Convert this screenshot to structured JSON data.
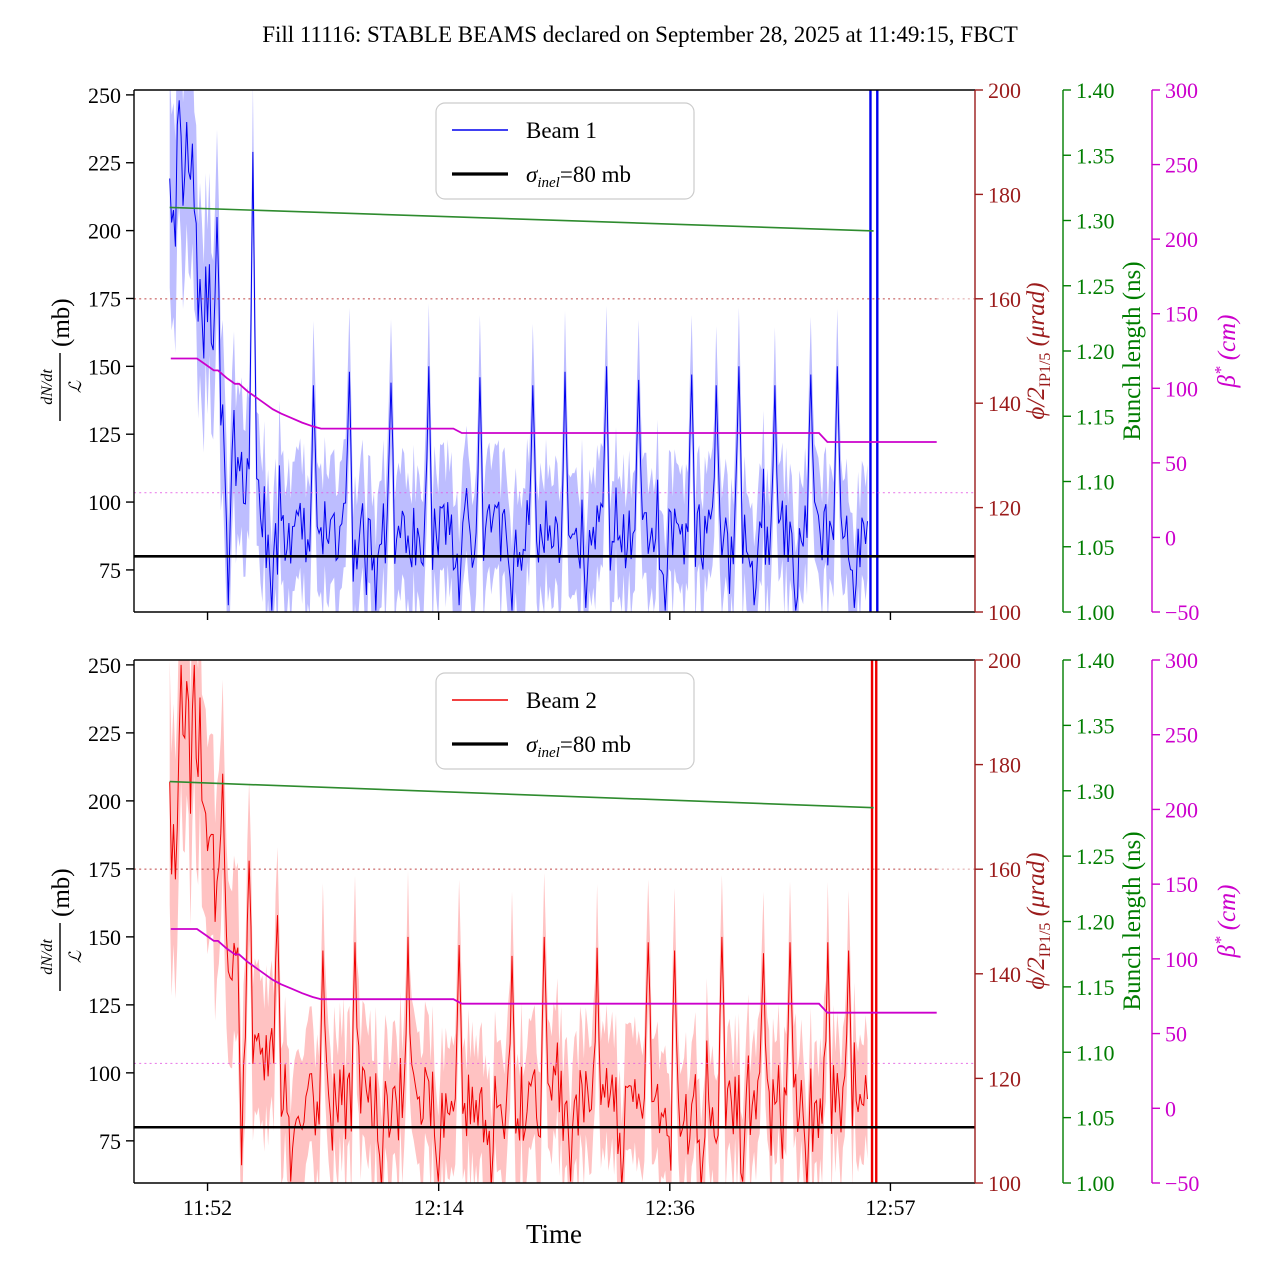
{
  "title": "Fill 11116: STABLE BEAMS declared on September 28, 2025 at 11:49:15, FBCT",
  "colors": {
    "beam1": "#0000ee",
    "beam1_band": "rgba(0,0,255,0.26)",
    "beam2": "#ee0000",
    "beam2_band": "rgba(255,0,0,0.24)",
    "sigma_line": "#000000",
    "bunch_line": "#2e8b2e",
    "phi_axis": "#9b1b1b",
    "phi_dotted": "rgba(178,34,34,0.6)",
    "phi_dotted_faint": "rgba(178,34,34,0.3)",
    "bunch_axis": "#007d00",
    "beta_axis": "#cc00cc",
    "beta_line": "#cc00cc",
    "beta_dotted": "rgba(227,88,227,0.75)",
    "frame": "#000000",
    "legend_border": "#cccccc"
  },
  "x_axis": {
    "label": "Time",
    "t0_clock": "11:45",
    "range_min": [
      0,
      80.05
    ],
    "ticks": [
      {
        "t": 7,
        "label": "11:52"
      },
      {
        "t": 29,
        "label": "12:14"
      },
      {
        "t": 51,
        "label": "12:36"
      },
      {
        "t": 72,
        "label": "12:57"
      }
    ]
  },
  "left_axis": {
    "label_num": "dN/dt",
    "label_den": "ℒ",
    "label_unit": "(mb)",
    "range": [
      59.5,
      251.8
    ],
    "ticks": [
      {
        "v": 250,
        "label": "250"
      },
      {
        "v": 225,
        "label": "225"
      },
      {
        "v": 200,
        "label": "200"
      },
      {
        "v": 175,
        "label": "175"
      },
      {
        "v": 150,
        "label": "150"
      },
      {
        "v": 125,
        "label": "125"
      },
      {
        "v": 100,
        "label": "100"
      },
      {
        "v": 75,
        "label": "75"
      }
    ]
  },
  "phi_axis": {
    "label_main": "ϕ/2",
    "label_sub": "IP1/5",
    "label_unit": " (μrad)",
    "range": [
      100,
      200
    ],
    "ticks": [
      {
        "v": 200,
        "label": "200"
      },
      {
        "v": 180,
        "label": "180"
      },
      {
        "v": 160,
        "label": "160"
      },
      {
        "v": 140,
        "label": "140"
      },
      {
        "v": 120,
        "label": "120"
      },
      {
        "v": 100,
        "label": "100"
      }
    ]
  },
  "bunch_axis": {
    "label": "Bunch length (ns)",
    "range": [
      1.0,
      1.4
    ],
    "ticks": [
      {
        "v": 1.4,
        "label": "1.40"
      },
      {
        "v": 1.35,
        "label": "1.35"
      },
      {
        "v": 1.3,
        "label": "1.30"
      },
      {
        "v": 1.25,
        "label": "1.25"
      },
      {
        "v": 1.2,
        "label": "1.20"
      },
      {
        "v": 1.15,
        "label": "1.15"
      },
      {
        "v": 1.1,
        "label": "1.10"
      },
      {
        "v": 1.05,
        "label": "1.05"
      },
      {
        "v": 1.0,
        "label": "1.00"
      }
    ]
  },
  "beta_axis": {
    "label_main": "β",
    "label_sup": "*",
    "label_unit": " (cm)",
    "range": [
      -50,
      300
    ],
    "ticks": [
      {
        "v": 300,
        "label": "300"
      },
      {
        "v": 250,
        "label": "250"
      },
      {
        "v": 200,
        "label": "200"
      },
      {
        "v": 150,
        "label": "150"
      },
      {
        "v": 100,
        "label": "100"
      },
      {
        "v": 50,
        "label": "50"
      },
      {
        "v": 0,
        "label": "0"
      },
      {
        "v": -50,
        "label": "−50"
      }
    ]
  },
  "chart_data": {
    "type": "line",
    "note": "LHC luminosity-normalized rate dN/dt/L vs time for both beams; noisy measured series described by baseline/noise/band envelopes; overlays: inelastic cross-section reference, half crossing-angle, bunch length, beta-star levelling steps.",
    "shared_series": {
      "sigma_inel_mb": {
        "value": 80,
        "t_start": 0,
        "t_end": 80.05
      },
      "crossing_half_angle_urad": {
        "value": 160,
        "style": "dotted",
        "t_start": 0,
        "t_end_strong": 76.4,
        "t_end_faint": 80.05
      },
      "beta_star_target_cm": {
        "value": 30,
        "style": "dotted",
        "t_start": 0,
        "t_end": 80.05
      },
      "beta_star_cm": {
        "points": [
          [
            3.5,
            120
          ],
          [
            6,
            120
          ],
          [
            6.8,
            116
          ],
          [
            7.6,
            112
          ],
          [
            8,
            112
          ],
          [
            8.8,
            107
          ],
          [
            9.6,
            103
          ],
          [
            10,
            103
          ],
          [
            10.8,
            98
          ],
          [
            11.6,
            94
          ],
          [
            12.4,
            90
          ],
          [
            13.2,
            86
          ],
          [
            14,
            83
          ],
          [
            15,
            80
          ],
          [
            16,
            77
          ],
          [
            17,
            74.5
          ],
          [
            17.8,
            73
          ],
          [
            30.4,
            73
          ],
          [
            31.2,
            70
          ],
          [
            65.2,
            70
          ],
          [
            66,
            64
          ],
          [
            76.4,
            64
          ]
        ]
      }
    },
    "subplots": [
      {
        "id": "beam1",
        "legend": {
          "beam_label": "Beam 1",
          "sigma_prefix": "σ",
          "sigma_sub": "inel",
          "sigma_suffix": "=80 mb"
        },
        "beam": {
          "t_range": [
            3.4,
            69.9
          ],
          "baseline": [
            [
              3.4,
              200
            ],
            [
              4,
              212
            ],
            [
              4.6,
              205
            ],
            [
              5.2,
              198
            ],
            [
              5.8,
              188
            ],
            [
              6.4,
              175
            ],
            [
              7,
              163
            ],
            [
              7.6,
              152
            ],
            [
              8.2,
              142
            ],
            [
              8.8,
              132
            ],
            [
              9.4,
              122
            ],
            [
              10,
              112
            ],
            [
              10.6,
              105
            ],
            [
              11.2,
              100
            ],
            [
              11.8,
              96
            ],
            [
              12.4,
              93
            ],
            [
              13,
              91
            ],
            [
              14,
              89
            ],
            [
              16,
              88
            ],
            [
              20,
              88
            ],
            [
              30,
              87
            ],
            [
              40,
              88
            ],
            [
              50,
              87
            ],
            [
              60,
              88
            ],
            [
              69.9,
              88
            ]
          ],
          "noise_amp": [
            [
              3.4,
              20
            ],
            [
              6,
              18
            ],
            [
              9,
              15
            ],
            [
              12,
              13
            ],
            [
              69.9,
              13
            ]
          ],
          "band_halfwidth": [
            [
              3.4,
              40
            ],
            [
              6,
              36
            ],
            [
              9,
              30
            ],
            [
              12,
              24
            ],
            [
              69.9,
              21
            ]
          ],
          "spikes": [
            [
              4.3,
              248
            ],
            [
              5.0,
              240
            ],
            [
              5.6,
              232
            ],
            [
              7.9,
              205
            ],
            [
              9.0,
              62
            ],
            [
              11.3,
              229
            ],
            [
              13.2,
              60
            ],
            [
              17,
              143
            ],
            [
              20.5,
              148
            ],
            [
              23,
              60
            ],
            [
              24.5,
              144
            ],
            [
              28,
              150
            ],
            [
              31,
              62
            ],
            [
              33,
              146
            ],
            [
              36,
              60
            ],
            [
              38,
              143
            ],
            [
              41,
              148
            ],
            [
              43,
              61
            ],
            [
              45,
              150
            ],
            [
              48,
              145
            ],
            [
              50.5,
              60
            ],
            [
              53,
              147
            ],
            [
              55.5,
              143
            ],
            [
              57.5,
              150
            ],
            [
              59,
              62
            ],
            [
              61,
              143
            ],
            [
              63,
              60
            ],
            [
              64.5,
              147
            ],
            [
              67,
              150
            ],
            [
              68.5,
              61
            ]
          ],
          "end_spike_times": [
            70.1,
            70.75
          ],
          "noise_seed": 12345
        },
        "bunch_length_ns": {
          "points": [
            [
              3.4,
              1.31
            ],
            [
              70.4,
              1.292
            ]
          ]
        }
      },
      {
        "id": "beam2",
        "legend": {
          "beam_label": "Beam 2",
          "sigma_prefix": "σ",
          "sigma_sub": "inel",
          "sigma_suffix": "=80 mb"
        },
        "beam": {
          "t_range": [
            3.4,
            69.9
          ],
          "baseline": [
            [
              3.4,
              190
            ],
            [
              4,
              182
            ],
            [
              4.6,
              195
            ],
            [
              5.2,
              208
            ],
            [
              5.8,
              203
            ],
            [
              6.4,
              196
            ],
            [
              7,
              185
            ],
            [
              7.6,
              172
            ],
            [
              8.2,
              160
            ],
            [
              8.8,
              150
            ],
            [
              9.4,
              143
            ],
            [
              10,
              134
            ],
            [
              10.6,
              126
            ],
            [
              11.2,
              119
            ],
            [
              11.8,
              112
            ],
            [
              12.4,
              106
            ],
            [
              13,
              101
            ],
            [
              14,
              96
            ],
            [
              15,
              93
            ],
            [
              16,
              91
            ],
            [
              18,
              90
            ],
            [
              20,
              89
            ],
            [
              30,
              88
            ],
            [
              40,
              89
            ],
            [
              50,
              88
            ],
            [
              60,
              89
            ],
            [
              69.9,
              89
            ]
          ],
          "noise_amp": [
            [
              3.4,
              24
            ],
            [
              7,
              20
            ],
            [
              10,
              17
            ],
            [
              13,
              14
            ],
            [
              69.9,
              14
            ]
          ],
          "band_halfwidth": [
            [
              3.4,
              45
            ],
            [
              7,
              38
            ],
            [
              10,
              31
            ],
            [
              13,
              25
            ],
            [
              69.9,
              22
            ]
          ],
          "spikes": [
            [
              4.4,
              250
            ],
            [
              5.0,
              244
            ],
            [
              5.7,
              250
            ],
            [
              6.3,
              238
            ],
            [
              8.5,
              210
            ],
            [
              10.2,
              66
            ],
            [
              11.0,
              178
            ],
            [
              13.6,
              158
            ],
            [
              15,
              60
            ],
            [
              18,
              145
            ],
            [
              21,
              148
            ],
            [
              23.5,
              58
            ],
            [
              26,
              150
            ],
            [
              29,
              60
            ],
            [
              31,
              147
            ],
            [
              34,
              58
            ],
            [
              36,
              143
            ],
            [
              39,
              150
            ],
            [
              41.5,
              60
            ],
            [
              44,
              146
            ],
            [
              46.5,
              58
            ],
            [
              49,
              148
            ],
            [
              51.5,
              145
            ],
            [
              54,
              58
            ],
            [
              56,
              150
            ],
            [
              58,
              60
            ],
            [
              60,
              144
            ],
            [
              62.5,
              148
            ],
            [
              64,
              58
            ],
            [
              66,
              148
            ],
            [
              68,
              145
            ]
          ],
          "end_spike_times": [
            70.25,
            70.65
          ],
          "noise_seed": 777
        },
        "bunch_length_ns": {
          "points": [
            [
              3.4,
              1.307
            ],
            [
              70.4,
              1.287
            ]
          ]
        }
      }
    ]
  }
}
